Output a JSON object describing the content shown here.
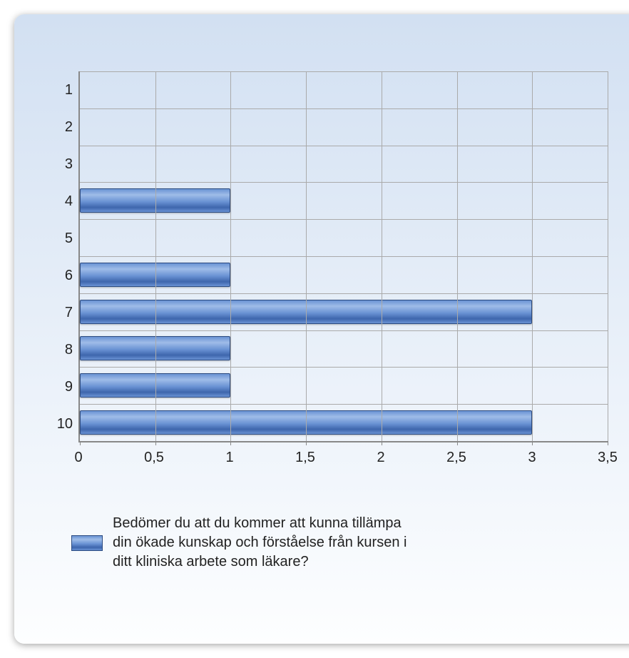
{
  "chart": {
    "type": "bar-horizontal",
    "panel_gradient_top": "#d2e0f2",
    "panel_gradient_bottom": "#fdfeff",
    "grid_color": "#aaaaaa",
    "axis_color": "#888888",
    "bar_gradient_light": "#9fbce8",
    "bar_gradient_mid": "#6a93d4",
    "bar_gradient_dark": "#3e66ad",
    "bar_border": "#2b4a80",
    "label_fontsize": 20,
    "categories": [
      "1",
      "2",
      "3",
      "4",
      "5",
      "6",
      "7",
      "8",
      "9",
      "10"
    ],
    "values": [
      0,
      0,
      0,
      1,
      0,
      1,
      3,
      1,
      1,
      3
    ],
    "xlim_min": 0,
    "xlim_max": 3.5,
    "xticks": [
      "0",
      "0,5",
      "1",
      "1,5",
      "2",
      "2,5",
      "3",
      "3,5"
    ],
    "xtick_values": [
      0,
      0.5,
      1,
      1.5,
      2,
      2.5,
      3,
      3.5
    ],
    "legend_label": "Bedömer du att du kommer att kunna tillämpa din ökade kunskap och förståelse från kursen i ditt kliniska arbete som läkare?"
  }
}
